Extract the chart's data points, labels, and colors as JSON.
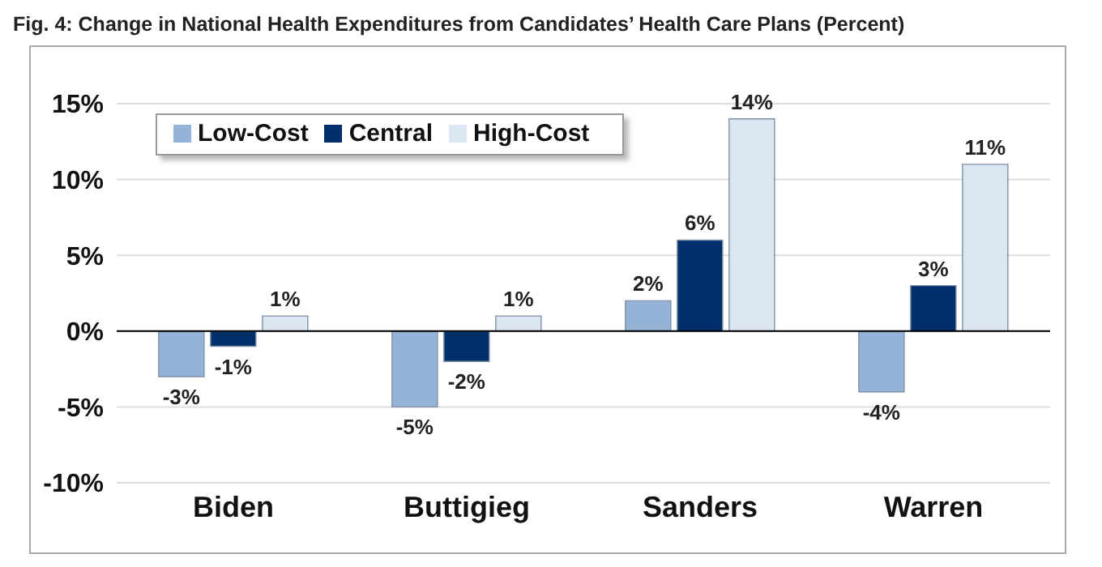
{
  "chart_data": {
    "type": "bar",
    "title": "Fig. 4: Change in National Health Expenditures from Candidates’ Health Care Plans (Percent)",
    "categories": [
      "Biden",
      "Buttigieg",
      "Sanders",
      "Warren"
    ],
    "series": [
      {
        "name": "Low-Cost",
        "color": "#95b3d7",
        "values": [
          -3,
          -5,
          2,
          -4
        ],
        "value_labels": [
          "-3%",
          "-5%",
          "2%",
          "-4%"
        ]
      },
      {
        "name": "Central",
        "color": "#002f6c",
        "values": [
          -1,
          -2,
          6,
          3
        ],
        "value_labels": [
          "-1%",
          "-2%",
          "6%",
          "3%"
        ]
      },
      {
        "name": "High-Cost",
        "color": "#dce6f2",
        "values": [
          1,
          1,
          14,
          11
        ],
        "value_labels": [
          "1%",
          "1%",
          "14%",
          "11%"
        ]
      }
    ],
    "ylim": [
      -10,
      15
    ],
    "yticks": [
      {
        "value": -10,
        "label": "-10%"
      },
      {
        "value": -5,
        "label": "-5%"
      },
      {
        "value": 0,
        "label": "0%"
      },
      {
        "value": 5,
        "label": "5%"
      },
      {
        "value": 10,
        "label": "10%"
      },
      {
        "value": 15,
        "label": "15%"
      }
    ],
    "grid": "y",
    "legend": "top left"
  }
}
